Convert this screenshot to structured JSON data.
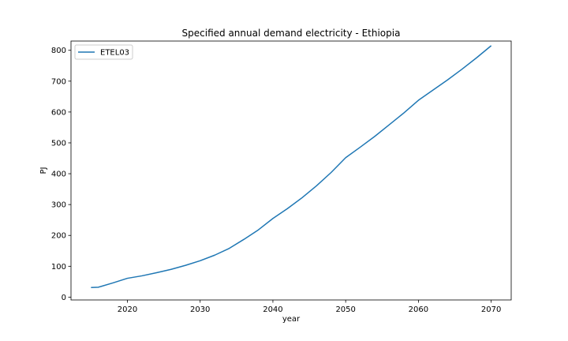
{
  "chart_data": {
    "type": "line",
    "title": "Specified annual demand electricity - Ethiopia",
    "xlabel": "year",
    "ylabel": "PJ",
    "xlim": [
      2012.25,
      2072.75
    ],
    "ylim": [
      -9.2,
      830
    ],
    "xticks": [
      2020,
      2030,
      2040,
      2050,
      2060,
      2070
    ],
    "yticks": [
      0,
      100,
      200,
      300,
      400,
      500,
      600,
      700,
      800
    ],
    "grid": false,
    "legend_position": "top-left",
    "series": [
      {
        "name": "ETEL03",
        "color": "#1f77b4",
        "x": [
          2015,
          2016,
          2018,
          2020,
          2022,
          2024,
          2026,
          2028,
          2030,
          2032,
          2034,
          2036,
          2038,
          2040,
          2042,
          2044,
          2046,
          2048,
          2050,
          2052,
          2054,
          2056,
          2058,
          2060,
          2062,
          2064,
          2066,
          2068,
          2070
        ],
        "y": [
          31,
          32,
          46,
          61,
          69,
          79,
          90,
          103,
          118,
          136,
          158,
          187,
          218,
          255,
          287,
          322,
          361,
          404,
          452,
          486,
          521,
          559,
          597,
          638,
          671,
          704,
          739,
          776,
          815
        ]
      }
    ]
  }
}
